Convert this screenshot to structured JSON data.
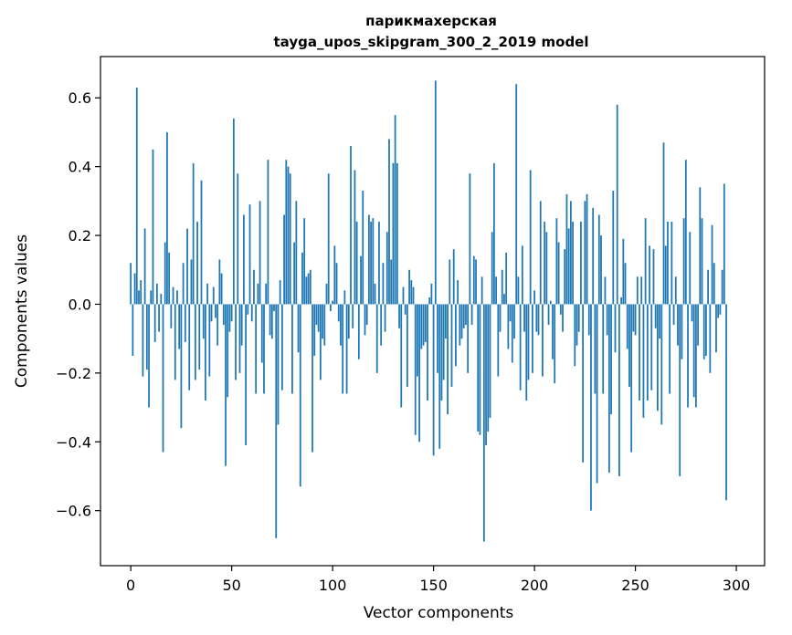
{
  "chart_data": {
    "type": "bar",
    "title_line1": "парикмахерская",
    "title_line2": "tayga_upos_skipgram_300_2_2019 model",
    "xlabel": "Vector components",
    "ylabel": "Components values",
    "xlim": [
      -15,
      314
    ],
    "ylim": [
      -0.76,
      0.72
    ],
    "xticks": [
      0,
      50,
      100,
      150,
      200,
      250,
      300
    ],
    "yticks": [
      -0.6,
      -0.4,
      -0.2,
      0.0,
      0.2,
      0.4,
      0.6
    ],
    "ytick_labels": [
      "−0.6",
      "−0.4",
      "−0.2",
      "0.0",
      "0.2",
      "0.4",
      "0.6"
    ],
    "grid": false,
    "bar_color": "#1f77b4",
    "values": [
      0.12,
      -0.15,
      0.09,
      0.63,
      0.04,
      0.07,
      -0.21,
      0.22,
      -0.19,
      -0.3,
      0.04,
      0.45,
      -0.11,
      0.06,
      -0.08,
      0.03,
      -0.43,
      0.18,
      0.5,
      0.15,
      -0.07,
      0.05,
      -0.22,
      0.04,
      -0.13,
      -0.36,
      0.12,
      -0.11,
      0.22,
      -0.25,
      0.13,
      0.41,
      -0.22,
      0.24,
      -0.19,
      0.36,
      -0.1,
      -0.28,
      0.06,
      -0.21,
      -0.05,
      0.05,
      -0.04,
      -0.12,
      0.13,
      0.09,
      -0.06,
      -0.47,
      -0.27,
      -0.08,
      -0.05,
      0.54,
      -0.22,
      0.38,
      -0.2,
      -0.12,
      0.26,
      -0.41,
      -0.03,
      0.29,
      -0.05,
      0.1,
      -0.26,
      0.06,
      0.3,
      -0.17,
      -0.26,
      0.06,
      0.42,
      -0.09,
      -0.1,
      -0.02,
      -0.68,
      -0.35,
      0.07,
      -0.25,
      0.26,
      0.42,
      0.4,
      0.38,
      -0.26,
      0.18,
      0.3,
      -0.14,
      -0.53,
      0.15,
      0.25,
      0.08,
      0.09,
      0.1,
      -0.43,
      -0.15,
      -0.06,
      -0.08,
      -0.22,
      -0.1,
      -0.12,
      0.06,
      0.38,
      -0.02,
      0.01,
      0.17,
      0.12,
      -0.05,
      -0.12,
      -0.26,
      0.04,
      -0.26,
      -0.1,
      0.46,
      -0.07,
      0.39,
      0.24,
      -0.16,
      0.14,
      0.33,
      -0.09,
      -0.06,
      0.26,
      0.24,
      0.25,
      0.06,
      -0.2,
      0.24,
      -0.12,
      0.12,
      -0.08,
      0.21,
      0.48,
      0.13,
      0.41,
      0.55,
      0.41,
      -0.07,
      -0.3,
      0.05,
      -0.03,
      -0.24,
      0.1,
      0.07,
      0.05,
      -0.38,
      -0.21,
      -0.4,
      -0.13,
      -0.12,
      -0.11,
      -0.28,
      0.02,
      0.06,
      -0.44,
      0.65,
      -0.2,
      -0.42,
      -0.28,
      -0.22,
      -0.1,
      -0.32,
      0.13,
      -0.24,
      0.16,
      -0.18,
      0.07,
      -0.12,
      -0.1,
      -0.07,
      -0.06,
      -0.2,
      0.38,
      -0.06,
      0.14,
      0.13,
      -0.37,
      -0.38,
      0.08,
      -0.69,
      -0.41,
      -0.37,
      -0.33,
      0.21,
      0.41,
      0.08,
      -0.21,
      -0.08,
      0.1,
      0.03,
      0.15,
      -0.13,
      -0.05,
      -0.17,
      -0.1,
      0.64,
      0.08,
      -0.25,
      0.17,
      -0.08,
      -0.28,
      -0.22,
      0.39,
      -0.2,
      0.04,
      -0.08,
      -0.09,
      0.3,
      -0.21,
      0.24,
      0.21,
      -0.06,
      0.01,
      -0.16,
      -0.23,
      0.25,
      0.18,
      -0.03,
      -0.08,
      0.16,
      0.32,
      0.22,
      0.3,
      0.24,
      -0.18,
      -0.12,
      -0.08,
      0.24,
      -0.46,
      0.3,
      0.32,
      -0.09,
      -0.6,
      0.28,
      -0.26,
      -0.52,
      0.26,
      0.2,
      -0.26,
      0.08,
      -0.09,
      -0.49,
      -0.32,
      0.33,
      -0.14,
      0.58,
      -0.5,
      0.02,
      0.19,
      0.12,
      -0.13,
      -0.24,
      -0.43,
      -0.08,
      -0.09,
      0.08,
      -0.28,
      0.08,
      -0.33,
      0.25,
      -0.28,
      0.17,
      -0.25,
      0.16,
      -0.07,
      -0.31,
      -0.1,
      -0.35,
      0.47,
      0.17,
      0.24,
      -0.26,
      0.24,
      -0.06,
      0.08,
      -0.12,
      -0.5,
      -0.16,
      0.25,
      0.42,
      -0.3,
      0.21,
      -0.05,
      -0.27,
      -0.3,
      -0.12,
      0.34,
      0.25,
      -0.16,
      -0.15,
      0.1,
      -0.2,
      0.23,
      0.12,
      -0.14,
      -0.04,
      -0.03,
      0.1,
      0.35,
      -0.57
    ]
  }
}
